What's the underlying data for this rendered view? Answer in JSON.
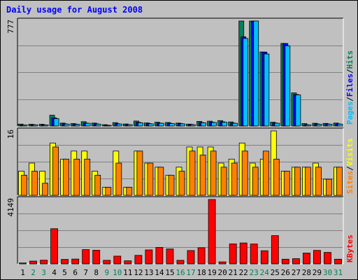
{
  "chart_data": {
    "type": "bar",
    "title": "Daily usage for August 2008",
    "categories": [
      "1",
      "2",
      "3",
      "4",
      "5",
      "6",
      "7",
      "8",
      "9",
      "10",
      "11",
      "12",
      "13",
      "14",
      "15",
      "16",
      "17",
      "18",
      "19",
      "20",
      "21",
      "22",
      "23",
      "24",
      "25",
      "26",
      "27",
      "28",
      "29",
      "30",
      "31"
    ],
    "weekend_days": [
      "2",
      "3",
      "9",
      "10",
      "16",
      "17",
      "23",
      "24",
      "30",
      "31"
    ],
    "panels": [
      {
        "id": "hits",
        "max_label": "777",
        "ylim": [
          0,
          777
        ],
        "legend": [
          "Pages",
          "Files",
          "Hits"
        ],
        "series": [
          {
            "name": "Hits",
            "color": "#00805c",
            "values": [
              14,
              13,
              13,
              80,
              22,
              18,
              32,
              22,
              10,
              25,
              15,
              37,
              23,
              28,
              26,
              22,
              14,
              34,
              36,
              40,
              30,
              777,
              777,
              548,
              28,
              611,
              245,
              18,
              20,
              19,
              22
            ]
          },
          {
            "name": "Files",
            "color": "#0000ff",
            "values": [
              8,
              10,
              9,
              60,
              16,
              14,
              22,
              16,
              6,
              17,
              11,
              27,
              18,
              22,
              20,
              18,
              12,
              26,
              28,
              31,
              22,
              660,
              777,
              547,
              22,
              610,
              233,
              10,
              15,
              15,
              16
            ]
          },
          {
            "name": "Pages",
            "color": "#00c0ff",
            "values": [
              7,
              9,
              8,
              55,
              14,
              12,
              20,
              14,
              5,
              15,
              10,
              24,
              16,
              20,
              18,
              16,
              10,
              24,
              26,
              28,
              20,
              648,
              777,
              533,
              20,
              593,
              230,
              9,
              13,
              13,
              14
            ]
          }
        ]
      },
      {
        "id": "visits",
        "max_label": "16",
        "ylim": [
          0,
          16
        ],
        "legend": [
          "Sites",
          "Visits"
        ],
        "series": [
          {
            "name": "Visits",
            "color": "#ffff00",
            "values": [
              6,
              8,
              6,
              13,
              9,
              11,
              11,
              6,
              2,
              11,
              2,
              11,
              8,
              7,
              5,
              7,
              12,
              12,
              12,
              8,
              9,
              13,
              8,
              9,
              16,
              6,
              7,
              7,
              8,
              4,
              7
            ]
          },
          {
            "name": "Sites",
            "color": "#ff8000",
            "values": [
              5,
              6,
              3,
              12,
              9,
              9,
              9,
              5,
              2,
              8,
              2,
              11,
              8,
              7,
              5,
              6,
              11,
              10,
              11,
              7,
              8,
              11,
              7,
              11,
              9,
              6,
              7,
              7,
              7,
              4,
              7
            ]
          }
        ]
      },
      {
        "id": "kbytes",
        "max_label": "4149",
        "ylim": [
          0,
          4149
        ],
        "legend": [
          "KBytes"
        ],
        "series": [
          {
            "name": "KBytes",
            "color": "#ff0000",
            "values": [
              60,
              180,
              240,
              2270,
              290,
              310,
              920,
              880,
              230,
              500,
              200,
              550,
              900,
              1060,
              960,
              230,
              860,
              1040,
              4149,
              130,
              1290,
              1350,
              1280,
              850,
              1820,
              300,
              340,
              700,
              870,
              740,
              300
            ]
          }
        ]
      }
    ],
    "grid": true
  },
  "colors": {
    "background": "#c0c0c0",
    "plot_background": "#c0c0c0",
    "title": "#0000ff",
    "weekday_label": "#000000",
    "weekend_label": "#00805c",
    "legend_pages": "#00c0ff",
    "legend_files": "#0000ff",
    "legend_hits": "#00805c",
    "legend_sites": "#ff8000",
    "legend_visits": "#ffff00",
    "legend_kbytes": "#ff0000"
  }
}
